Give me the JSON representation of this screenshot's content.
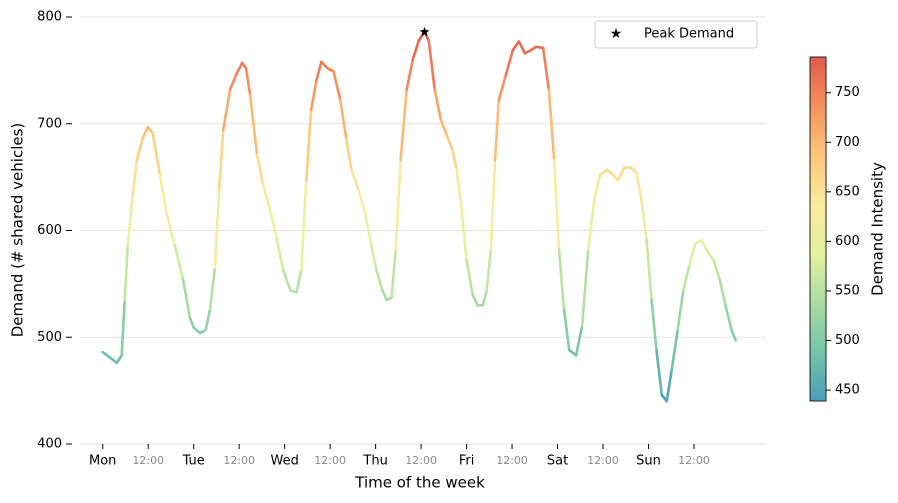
{
  "chart_data": {
    "type": "line",
    "xlabel": "Time of the week",
    "ylabel": "Demand (# shared vehicles)",
    "x": [
      0,
      1.9,
      3.7,
      5,
      5.8,
      6.6,
      7.9,
      9,
      10.6,
      11.9,
      13.2,
      15.1,
      16.9,
      19,
      21.2,
      23,
      24,
      25.7,
      27.2,
      28.3,
      29.6,
      30.7,
      31.8,
      33.6,
      35.2,
      36.8,
      37.8,
      38.9,
      40.7,
      42.3,
      44.2,
      46,
      47.6,
      49.5,
      51.1,
      52.4,
      53.7,
      55,
      56.4,
      57.7,
      59.3,
      60.9,
      62.7,
      64.3,
      65.6,
      67.5,
      69.3,
      70.9,
      72.2,
      73.8,
      74.9,
      76.2,
      77.3,
      78.6,
      80.2,
      81.8,
      83.4,
      84.9,
      86,
      87.6,
      89.2,
      90.8,
      92.3,
      93.4,
      94.7,
      96,
      97.6,
      98.9,
      100.3,
      101.3,
      102.4,
      103.5,
      104.5,
      106.4,
      108.2,
      109.8,
      111.4,
      113,
      114.3,
      116.2,
      117.7,
      119.1,
      120.4,
      121.7,
      123.1,
      124.9,
      126.5,
      128.1,
      129.7,
      131.2,
      133.1,
      134.7,
      136,
      137.6,
      139.2,
      140.8,
      142.1,
      143.5,
      144.8,
      146.1,
      147.5,
      148.8,
      150.1,
      151.7,
      153.2,
      154.8,
      156.4,
      158,
      159.3,
      161.2,
      162.8,
      164.3,
      165.9,
      167
    ],
    "y": [
      486,
      481,
      476,
      483,
      535,
      586,
      633,
      666,
      687,
      697,
      691,
      652,
      615,
      586,
      554,
      518,
      509,
      504,
      507,
      526,
      565,
      638,
      694,
      732,
      746,
      757,
      752,
      727,
      671,
      643,
      619,
      591,
      563,
      544,
      542,
      563,
      647,
      713,
      741,
      758,
      752,
      749,
      722,
      685,
      657,
      638,
      615,
      586,
      563,
      544,
      535,
      537,
      582,
      666,
      732,
      760,
      778,
      786,
      778,
      732,
      704,
      689,
      675,
      657,
      619,
      572,
      540,
      530,
      530,
      544,
      582,
      666,
      722,
      746,
      769,
      777,
      766,
      769,
      772,
      771,
      732,
      666,
      582,
      526,
      488,
      483,
      511,
      582,
      629,
      652,
      657,
      652,
      647,
      659,
      659,
      655,
      629,
      591,
      535,
      488,
      446,
      440,
      469,
      507,
      544,
      568,
      588,
      591,
      582,
      572,
      554,
      530,
      507,
      497
    ],
    "peak": {
      "label": "Peak Demand",
      "x": 84.9,
      "y": 786
    },
    "xlim": [
      -6,
      175
    ],
    "ylim": [
      400,
      800
    ],
    "xticks": [
      {
        "value": 0,
        "label": "Mon"
      },
      {
        "value": 24,
        "label": "Tue"
      },
      {
        "value": 48,
        "label": "Wed"
      },
      {
        "value": 72,
        "label": "Thu"
      },
      {
        "value": 96,
        "label": "Fri"
      },
      {
        "value": 120,
        "label": "Sat"
      },
      {
        "value": 144,
        "label": "Sun"
      }
    ],
    "xticks_minor": [
      {
        "value": 12,
        "label": "12:00"
      },
      {
        "value": 36,
        "label": "12:00"
      },
      {
        "value": 60,
        "label": "12:00"
      },
      {
        "value": 84,
        "label": "12:00"
      },
      {
        "value": 108,
        "label": "12:00"
      },
      {
        "value": 132,
        "label": "12:00"
      },
      {
        "value": 156,
        "label": "12:00"
      }
    ],
    "yticks": [
      400,
      500,
      600,
      700,
      800
    ],
    "grid": true,
    "legend": "upper right",
    "colorbar": {
      "label": "Demand Intensity",
      "clim": [
        439,
        786
      ],
      "ticks": [
        450,
        500,
        550,
        600,
        650,
        700,
        750
      ],
      "colors": [
        "#4a9fb8",
        "#74c4a8",
        "#aadca3",
        "#e4f2a0",
        "#fbeb9c",
        "#fdc67a",
        "#f5915c",
        "#e05a4b"
      ]
    }
  }
}
